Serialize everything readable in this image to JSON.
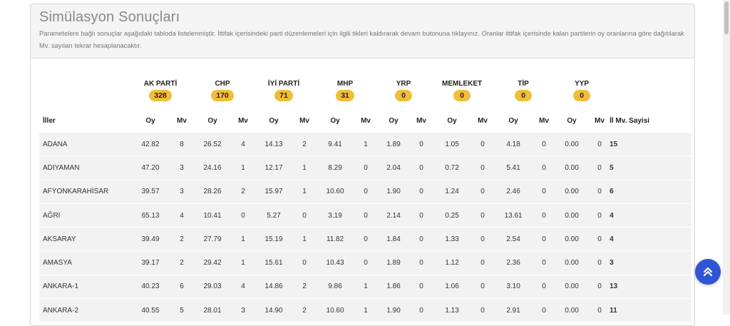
{
  "header": {
    "title": "Simülasyon Sonuçları",
    "description": "Parametelere bağlı sonuçlar aşağıdaki tabloda listelenmiştir. İttifak içerisindeki parti düzenlemeleri için ilgili tikleri kaldırarak devam butonuna tıklayınız. Oranlar ittifak içerisinde kalan partilerin oy oranlarına göre dağıtılarak Mv. sayıları tekrar hesaplanacaktır."
  },
  "parties": [
    {
      "name": "AK PARTİ",
      "seats": "328"
    },
    {
      "name": "CHP",
      "seats": "170"
    },
    {
      "name": "İYİ PARTİ",
      "seats": "71"
    },
    {
      "name": "MHP",
      "seats": "31"
    },
    {
      "name": "YRP",
      "seats": "0"
    },
    {
      "name": "MEMLEKET",
      "seats": "0"
    },
    {
      "name": "TİP",
      "seats": "0"
    },
    {
      "name": "YYP",
      "seats": "0"
    }
  ],
  "columns": {
    "province": "İller",
    "oy": "Oy",
    "mv": "Mv",
    "total": "İl Mv. Sayisi"
  },
  "rows": [
    {
      "province": "ADANA",
      "cells": [
        "42.82",
        "8",
        "26.52",
        "4",
        "14.13",
        "2",
        "9.41",
        "1",
        "1.89",
        "0",
        "1.05",
        "0",
        "4.18",
        "0",
        "0.00",
        "0"
      ],
      "total": "15"
    },
    {
      "province": "ADIYAMAN",
      "cells": [
        "47.20",
        "3",
        "24.16",
        "1",
        "12.17",
        "1",
        "8.29",
        "0",
        "2.04",
        "0",
        "0.72",
        "0",
        "5.41",
        "0",
        "0.00",
        "0"
      ],
      "total": "5"
    },
    {
      "province": "AFYONKARAHİSAR",
      "cells": [
        "39.57",
        "3",
        "28.26",
        "2",
        "15.97",
        "1",
        "10.60",
        "0",
        "1.90",
        "0",
        "1.24",
        "0",
        "2.46",
        "0",
        "0.00",
        "0"
      ],
      "total": "6"
    },
    {
      "province": "AĞRI",
      "cells": [
        "65.13",
        "4",
        "10.41",
        "0",
        "5.27",
        "0",
        "3.19",
        "0",
        "2.14",
        "0",
        "0.25",
        "0",
        "13.61",
        "0",
        "0.00",
        "0"
      ],
      "total": "4"
    },
    {
      "province": "AKSARAY",
      "cells": [
        "39.49",
        "2",
        "27.79",
        "1",
        "15.19",
        "1",
        "11.82",
        "0",
        "1.84",
        "0",
        "1.33",
        "0",
        "2.54",
        "0",
        "0.00",
        "0"
      ],
      "total": "4"
    },
    {
      "province": "AMASYA",
      "cells": [
        "39.17",
        "2",
        "29.42",
        "1",
        "15.61",
        "0",
        "10.43",
        "0",
        "1.89",
        "0",
        "1.12",
        "0",
        "2.36",
        "0",
        "0.00",
        "0"
      ],
      "total": "3"
    },
    {
      "province": "ANKARA-1",
      "cells": [
        "40.23",
        "6",
        "29.03",
        "4",
        "14.86",
        "2",
        "9.86",
        "1",
        "1.86",
        "0",
        "1.06",
        "0",
        "3.10",
        "0",
        "0.00",
        "0"
      ],
      "total": "13"
    },
    {
      "province": "ANKARA-2",
      "cells": [
        "40.55",
        "5",
        "28.01",
        "3",
        "14.90",
        "2",
        "10.60",
        "1",
        "1.90",
        "0",
        "1.13",
        "0",
        "2.91",
        "0",
        "0.00",
        "0"
      ],
      "total": "11"
    }
  ],
  "icons": {
    "scroll_top": "double-chevron-up-icon"
  },
  "colors": {
    "badge": "#f1bd38",
    "fab": "#2f55d4",
    "row_bg": "#f2f2f2"
  }
}
